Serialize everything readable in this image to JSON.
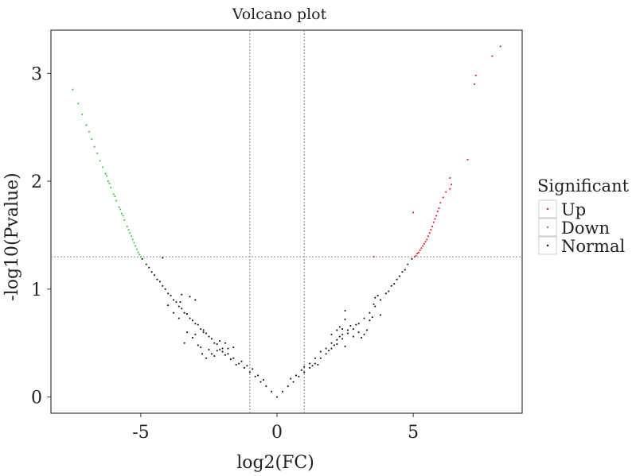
{
  "chart_data": {
    "type": "scatter",
    "title": "Volcano plot",
    "xlabel": "log2(FC)",
    "ylabel": "-log10(Pvalue)",
    "xlim": [
      -8.3,
      9.0
    ],
    "ylim": [
      -0.15,
      3.4
    ],
    "x_ticks": [
      -5,
      0,
      5
    ],
    "x_tick_labels": [
      "-5",
      "0",
      "5"
    ],
    "y_ticks": [
      0,
      1,
      2,
      3
    ],
    "y_tick_labels": [
      "0",
      "1",
      "2",
      "3"
    ],
    "grid": false,
    "threshold_lines": {
      "vertical": [
        -1,
        1
      ],
      "horizontal": 1.3,
      "style": "dotted"
    },
    "legend": {
      "title": "Significant",
      "placement": "right",
      "entries": [
        {
          "label": "Up",
          "color": "#e41a1c"
        },
        {
          "label": "Down",
          "color": "#33cc33"
        },
        {
          "label": "Normal",
          "color": "#111111"
        }
      ]
    },
    "series": [
      {
        "name": "Up",
        "color": "#e41a1c",
        "points": [
          [
            8.2,
            3.25
          ],
          [
            7.9,
            3.16
          ],
          [
            7.3,
            2.98
          ],
          [
            7.25,
            2.9
          ],
          [
            7.0,
            2.2
          ],
          [
            6.35,
            2.03
          ],
          [
            6.4,
            1.97
          ],
          [
            6.35,
            1.93
          ],
          [
            6.2,
            1.9
          ],
          [
            6.1,
            1.85
          ],
          [
            6.0,
            1.8
          ],
          [
            5.95,
            1.75
          ],
          [
            5.9,
            1.72
          ],
          [
            5.85,
            1.68
          ],
          [
            5.8,
            1.65
          ],
          [
            5.75,
            1.62
          ],
          [
            5.7,
            1.58
          ],
          [
            5.65,
            1.55
          ],
          [
            5.6,
            1.52
          ],
          [
            5.55,
            1.49
          ],
          [
            5.5,
            1.46
          ],
          [
            5.45,
            1.44
          ],
          [
            5.4,
            1.42
          ],
          [
            5.35,
            1.4
          ],
          [
            5.3,
            1.38
          ],
          [
            5.25,
            1.36
          ],
          [
            5.2,
            1.34
          ],
          [
            5.15,
            1.33
          ],
          [
            5.1,
            1.31
          ],
          [
            5.05,
            1.3
          ],
          [
            5.0,
            1.71
          ],
          [
            3.55,
            1.3
          ]
        ]
      },
      {
        "name": "Down",
        "color": "#33cc33",
        "points": [
          [
            -7.5,
            2.85
          ],
          [
            -7.3,
            2.72
          ],
          [
            -7.15,
            2.62
          ],
          [
            -7.0,
            2.52
          ],
          [
            -6.9,
            2.46
          ],
          [
            -6.8,
            2.39
          ],
          [
            -6.7,
            2.32
          ],
          [
            -6.6,
            2.26
          ],
          [
            -6.5,
            2.19
          ],
          [
            -6.4,
            2.13
          ],
          [
            -6.3,
            2.07
          ],
          [
            -6.2,
            2.0
          ],
          [
            -6.1,
            1.94
          ],
          [
            -6.0,
            1.88
          ],
          [
            -5.9,
            1.82
          ],
          [
            -5.8,
            1.76
          ],
          [
            -5.7,
            1.7
          ],
          [
            -5.6,
            1.64
          ],
          [
            -5.5,
            1.58
          ],
          [
            -5.45,
            1.55
          ],
          [
            -5.4,
            1.52
          ],
          [
            -5.35,
            1.49
          ],
          [
            -5.3,
            1.46
          ],
          [
            -5.25,
            1.43
          ],
          [
            -5.2,
            1.4
          ],
          [
            -5.15,
            1.37
          ],
          [
            -5.1,
            1.34
          ],
          [
            -5.05,
            1.32
          ],
          [
            -5.0,
            1.3
          ],
          [
            -6.25,
            2.05
          ],
          [
            -6.15,
            1.98
          ],
          [
            -5.95,
            1.86
          ],
          [
            -5.75,
            1.74
          ],
          [
            -5.65,
            1.68
          ]
        ]
      },
      {
        "name": "Normal",
        "color": "#111111",
        "points": [
          [
            0,
            0
          ],
          [
            -0.2,
            0.05
          ],
          [
            -0.4,
            0.1
          ],
          [
            -0.6,
            0.14
          ],
          [
            -0.8,
            0.19
          ],
          [
            -1.0,
            0.23
          ],
          [
            -1.2,
            0.27
          ],
          [
            -1.4,
            0.31
          ],
          [
            -1.6,
            0.36
          ],
          [
            -1.8,
            0.4
          ],
          [
            -2.0,
            0.45
          ],
          [
            -2.2,
            0.49
          ],
          [
            -2.4,
            0.54
          ],
          [
            -2.6,
            0.59
          ],
          [
            -2.8,
            0.63
          ],
          [
            -3.0,
            0.68
          ],
          [
            -3.2,
            0.73
          ],
          [
            -3.4,
            0.78
          ],
          [
            -3.6,
            0.84
          ],
          [
            -3.8,
            0.9
          ],
          [
            -4.0,
            0.96
          ],
          [
            -4.2,
            1.03
          ],
          [
            -4.4,
            1.09
          ],
          [
            -4.6,
            1.16
          ],
          [
            -4.8,
            1.23
          ],
          [
            -4.95,
            1.28
          ],
          [
            -1.5,
            0.3
          ],
          [
            -1.7,
            0.35
          ],
          [
            -1.9,
            0.39
          ],
          [
            -2.1,
            0.44
          ],
          [
            -2.3,
            0.5
          ],
          [
            -2.5,
            0.56
          ],
          [
            -2.7,
            0.62
          ],
          [
            -2.9,
            0.67
          ],
          [
            -3.1,
            0.71
          ],
          [
            -3.3,
            0.77
          ],
          [
            -3.5,
            0.82
          ],
          [
            -3.7,
            0.88
          ],
          [
            -3.9,
            0.94
          ],
          [
            -4.1,
            1.0
          ],
          [
            -4.3,
            1.07
          ],
          [
            -4.5,
            1.13
          ],
          [
            -4.7,
            1.2
          ],
          [
            -1.8,
            0.45
          ],
          [
            -2.0,
            0.42
          ],
          [
            -2.2,
            0.43
          ],
          [
            -2.5,
            0.44
          ],
          [
            -2.6,
            0.36
          ],
          [
            -2.8,
            0.46
          ],
          [
            -3.3,
            0.6
          ],
          [
            -3.4,
            0.5
          ],
          [
            -3.1,
            0.55
          ],
          [
            -3.0,
            0.58
          ],
          [
            -2.9,
            0.48
          ],
          [
            -1.6,
            0.46
          ],
          [
            -1.9,
            0.5
          ],
          [
            -2.1,
            0.52
          ],
          [
            -2.4,
            0.4
          ],
          [
            -2.7,
            0.6
          ],
          [
            -2.3,
            0.38
          ],
          [
            -3.2,
            0.93
          ],
          [
            -3.55,
            0.88
          ],
          [
            -3.5,
            0.95
          ],
          [
            -3.0,
            0.9
          ],
          [
            -4.2,
            1.29
          ],
          [
            -3.6,
            0.73
          ],
          [
            -3.8,
            0.78
          ],
          [
            -4.0,
            0.85
          ],
          [
            -2.75,
            0.4
          ],
          [
            -1.3,
            0.33
          ],
          [
            0.2,
            0.05
          ],
          [
            0.4,
            0.1
          ],
          [
            0.6,
            0.14
          ],
          [
            0.8,
            0.19
          ],
          [
            1.0,
            0.23
          ],
          [
            1.2,
            0.27
          ],
          [
            1.4,
            0.31
          ],
          [
            1.6,
            0.36
          ],
          [
            1.8,
            0.4
          ],
          [
            2.0,
            0.45
          ],
          [
            2.2,
            0.49
          ],
          [
            2.4,
            0.54
          ],
          [
            2.6,
            0.59
          ],
          [
            2.8,
            0.63
          ],
          [
            3.0,
            0.68
          ],
          [
            3.2,
            0.73
          ],
          [
            3.4,
            0.78
          ],
          [
            3.6,
            0.84
          ],
          [
            3.8,
            0.9
          ],
          [
            4.0,
            0.96
          ],
          [
            4.2,
            1.03
          ],
          [
            4.4,
            1.09
          ],
          [
            4.6,
            1.16
          ],
          [
            4.8,
            1.23
          ],
          [
            4.95,
            1.28
          ],
          [
            1.0,
            0.28
          ],
          [
            1.2,
            0.31
          ],
          [
            1.4,
            0.36
          ],
          [
            1.6,
            0.42
          ],
          [
            1.8,
            0.45
          ],
          [
            2.0,
            0.5
          ],
          [
            2.2,
            0.53
          ],
          [
            2.4,
            0.58
          ],
          [
            2.5,
            0.47
          ],
          [
            2.6,
            0.62
          ],
          [
            2.8,
            0.56
          ],
          [
            2.9,
            0.67
          ],
          [
            3.0,
            0.6
          ],
          [
            3.1,
            0.55
          ],
          [
            2.7,
            0.66
          ],
          [
            2.3,
            0.56
          ],
          [
            2.1,
            0.48
          ],
          [
            1.9,
            0.43
          ],
          [
            1.5,
            0.3
          ],
          [
            1.3,
            0.29
          ],
          [
            2.5,
            0.72
          ],
          [
            2.4,
            0.63
          ],
          [
            3.2,
            0.58
          ],
          [
            3.3,
            0.62
          ],
          [
            3.4,
            0.71
          ],
          [
            3.5,
            0.74
          ],
          [
            3.6,
            0.92
          ],
          [
            3.55,
            0.86
          ],
          [
            3.7,
            0.94
          ],
          [
            2.5,
            0.8
          ],
          [
            2.3,
            0.65
          ],
          [
            2.2,
            0.62
          ],
          [
            2.0,
            0.58
          ],
          [
            3.8,
            0.76
          ],
          [
            4.1,
            0.98
          ],
          [
            4.3,
            1.05
          ],
          [
            4.5,
            1.12
          ],
          [
            4.7,
            1.18
          ],
          [
            0.5,
            0.17
          ],
          [
            0.7,
            0.2
          ],
          [
            0.9,
            0.25
          ],
          [
            -0.5,
            0.16
          ],
          [
            -0.7,
            0.2
          ],
          [
            -0.9,
            0.26
          ],
          [
            -1.1,
            0.29
          ]
        ]
      }
    ]
  }
}
